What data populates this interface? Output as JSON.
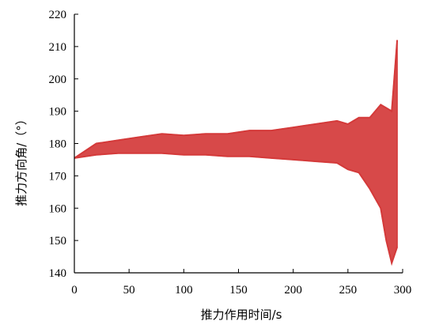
{
  "chart_data": {
    "type": "line",
    "title": "",
    "xlabel": "推力作用时间/s",
    "ylabel": "推力方向角/（°）",
    "xlim": [
      0,
      300
    ],
    "ylim": [
      140,
      220
    ],
    "xticks": [
      0,
      50,
      100,
      150,
      200,
      250,
      300
    ],
    "yticks": [
      140,
      150,
      160,
      170,
      180,
      190,
      200,
      210,
      220
    ],
    "xtick_labels": [
      "0",
      "50",
      "100",
      "150",
      "200",
      "250",
      "300"
    ],
    "ytick_labels": [
      "140",
      "150",
      "160",
      "170",
      "180",
      "190",
      "200",
      "210",
      "220"
    ],
    "grid": false,
    "legend": "none",
    "series_color": "#d43a3a",
    "series": [
      {
        "x": [
          0,
          20,
          40,
          60,
          80,
          100,
          120,
          140,
          160,
          180,
          200,
          220,
          240,
          250,
          260,
          270,
          280,
          285,
          290,
          295
        ],
        "values": [
          175.5,
          180,
          181,
          182,
          183,
          182.5,
          183,
          183,
          184,
          184,
          185,
          186,
          187,
          186,
          188,
          188,
          192,
          191,
          190,
          212
        ]
      },
      {
        "x": [
          0,
          20,
          40,
          60,
          80,
          100,
          120,
          140,
          160,
          180,
          200,
          220,
          240,
          250,
          260,
          270,
          280,
          285,
          290,
          295
        ],
        "values": [
          175.5,
          176.5,
          177,
          177,
          177,
          176.5,
          176.5,
          176,
          176,
          175.5,
          175,
          174.5,
          174,
          172,
          171,
          166,
          160,
          150,
          143,
          148
        ]
      }
    ]
  }
}
